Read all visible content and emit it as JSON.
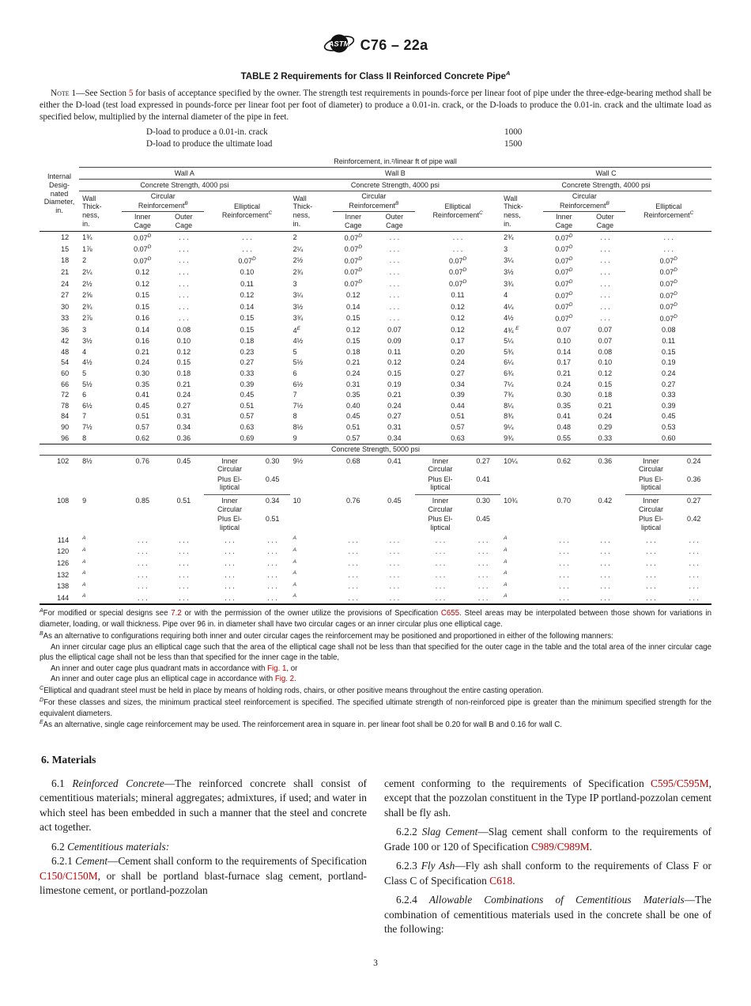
{
  "page": {
    "doc_code": "C76 – 22a",
    "page_number": "3"
  },
  "colors": {
    "link_red": "#c00000",
    "rule_dark": "#1c1c1c"
  },
  "table2": {
    "title": "TABLE 2 Requirements for Class II Reinforced Concrete Pipe",
    "title_sup": "A",
    "note": {
      "label": "Note 1—",
      "segs": [
        {
          "t": "See Section "
        },
        {
          "t": "5",
          "link": 1
        },
        {
          "t": " for basis of acceptance specified by the owner. The strength test requirements in pounds-force per linear foot of pipe under the three-edge-bearing method shall be either the D-load (test load expressed in pounds-force per linear foot per foot of diameter) to produce a 0.01-in. crack, or the D-loads to produce the 0.01-in. crack and the ultimate load as specified below, multiplied by the internal diameter of the pipe in feet."
        }
      ]
    },
    "dloads": [
      {
        "label": "D-load to produce a 0.01-in. crack",
        "value": "1000"
      },
      {
        "label": "D-load to produce the ultimate load",
        "value": "1500"
      }
    ],
    "header": {
      "caption": "Reinforcement, in.²/linear ft of pipe wall",
      "stub": "Internal\nDesig-\nnated\nDiameter,\nin.",
      "walls": [
        "Wall A",
        "Wall B",
        "Wall C"
      ],
      "strength_4000": "Concrete Strength, 4000 psi",
      "strength_5000": "Concrete Strength, 5000 psi",
      "thickness": "Wall\nThick-\nness,\nin.",
      "circular": "Circular\nReinforcement",
      "circular_sup": "B",
      "inner": "Inner\nCage",
      "outer": "Outer\nCage",
      "elliptical": "Elliptical\nReinforcement",
      "elliptical_sup": "C"
    },
    "dots": ". . .",
    "ell_label1": "Inner\nCircular",
    "ell_label2": "Plus El-\nliptical",
    "rows_4000": [
      {
        "d": "12",
        "a": [
          "1¾",
          "0.07^D",
          ". . .",
          ". . ."
        ],
        "b": [
          "2",
          "0.07^D",
          ". . .",
          ". . ."
        ],
        "c": [
          "2¾",
          "0.07^D",
          ". . .",
          ". . ."
        ]
      },
      {
        "d": "15",
        "a": [
          "1⅞",
          "0.07^D",
          ". . .",
          ". . ."
        ],
        "b": [
          "2¼",
          "0.07^D",
          ". . .",
          ". . ."
        ],
        "c": [
          "3",
          "0.07^D",
          ". . .",
          ". . ."
        ]
      },
      {
        "d": "18",
        "a": [
          "2",
          "0.07^D",
          ". . .",
          "0.07^D"
        ],
        "b": [
          "2½",
          "0.07^D",
          ". . .",
          "0.07^D"
        ],
        "c": [
          "3¼",
          "0.07^D",
          ". . .",
          "0.07^D"
        ]
      },
      {
        "d": "21",
        "a": [
          "2¼",
          "0.12",
          ". . .",
          "0.10"
        ],
        "b": [
          "2¾",
          "0.07^D",
          ". . .",
          "0.07^D"
        ],
        "c": [
          "3½",
          "0.07^D",
          ". . .",
          "0.07^D"
        ]
      },
      {
        "d": "24",
        "a": [
          "2½",
          "0.12",
          ". . .",
          "0.11"
        ],
        "b": [
          "3",
          "0.07^D",
          ". . .",
          "0.07^D"
        ],
        "c": [
          "3¾",
          "0.07^D",
          ". . .",
          "0.07^D"
        ]
      },
      {
        "d": "27",
        "a": [
          "2⅝",
          "0.15",
          ". . .",
          "0.12"
        ],
        "b": [
          "3¼",
          "0.12",
          ". . .",
          "0.11"
        ],
        "c": [
          "4",
          "0.07^D",
          ". . .",
          "0.07^D"
        ]
      },
      {
        "d": "30",
        "a": [
          "2¾",
          "0.15",
          ". . .",
          "0.14"
        ],
        "b": [
          "3½",
          "0.14",
          ". . .",
          "0.12"
        ],
        "c": [
          "4¼",
          "0.07^D",
          ". . .",
          "0.07^D"
        ]
      },
      {
        "d": "33",
        "a": [
          "2⅞",
          "0.16",
          ". . .",
          "0.15"
        ],
        "b": [
          "3¾",
          "0.15",
          ". . .",
          "0.12"
        ],
        "c": [
          "4½",
          "0.07^D",
          ". . .",
          "0.07^D"
        ]
      },
      {
        "d": "36",
        "a": [
          "3",
          "0.14",
          "0.08",
          "0.15"
        ],
        "b": [
          "4^E",
          "0.12",
          "0.07",
          "0.12"
        ],
        "c": [
          "4¾ ^E",
          "0.07",
          "0.07",
          "0.08"
        ]
      },
      {
        "d": "42",
        "a": [
          "3½",
          "0.16",
          "0.10",
          "0.18"
        ],
        "b": [
          "4½",
          "0.15",
          "0.09",
          "0.17"
        ],
        "c": [
          "5¼",
          "0.10",
          "0.07",
          "0.11"
        ]
      },
      {
        "d": "48",
        "a": [
          "4",
          "0.21",
          "0.12",
          "0.23"
        ],
        "b": [
          "5",
          "0.18",
          "0.11",
          "0.20"
        ],
        "c": [
          "5¾",
          "0.14",
          "0.08",
          "0.15"
        ]
      },
      {
        "d": "54",
        "a": [
          "4½",
          "0.24",
          "0.15",
          "0.27"
        ],
        "b": [
          "5½",
          "0.21",
          "0.12",
          "0.24"
        ],
        "c": [
          "6¼",
          "0.17",
          "0.10",
          "0.19"
        ]
      },
      {
        "d": "60",
        "a": [
          "5",
          "0.30",
          "0.18",
          "0.33"
        ],
        "b": [
          "6",
          "0.24",
          "0.15",
          "0.27"
        ],
        "c": [
          "6¾",
          "0.21",
          "0.12",
          "0.24"
        ]
      },
      {
        "d": "66",
        "a": [
          "5½",
          "0.35",
          "0.21",
          "0.39"
        ],
        "b": [
          "6½",
          "0.31",
          "0.19",
          "0.34"
        ],
        "c": [
          "7¼",
          "0.24",
          "0.15",
          "0.27"
        ]
      },
      {
        "d": "72",
        "a": [
          "6",
          "0.41",
          "0.24",
          "0.45"
        ],
        "b": [
          "7",
          "0.35",
          "0.21",
          "0.39"
        ],
        "c": [
          "7¾",
          "0.30",
          "0.18",
          "0.33"
        ]
      },
      {
        "d": "78",
        "a": [
          "6½",
          "0.45",
          "0.27",
          "0.51"
        ],
        "b": [
          "7½",
          "0.40",
          "0.24",
          "0.44"
        ],
        "c": [
          "8¼",
          "0.35",
          "0.21",
          "0.39"
        ]
      },
      {
        "d": "84",
        "a": [
          "7",
          "0.51",
          "0.31",
          "0.57"
        ],
        "b": [
          "8",
          "0.45",
          "0.27",
          "0.51"
        ],
        "c": [
          "8¾",
          "0.41",
          "0.24",
          "0.45"
        ]
      },
      {
        "d": "90",
        "a": [
          "7½",
          "0.57",
          "0.34",
          "0.63"
        ],
        "b": [
          "8½",
          "0.51",
          "0.31",
          "0.57"
        ],
        "c": [
          "9¼",
          "0.48",
          "0.29",
          "0.53"
        ]
      },
      {
        "d": "96",
        "a": [
          "8",
          "0.62",
          "0.36",
          "0.69"
        ],
        "b": [
          "9",
          "0.57",
          "0.34",
          "0.63"
        ],
        "c": [
          "9¾",
          "0.55",
          "0.33",
          "0.60"
        ]
      }
    ],
    "rows_5000": [
      {
        "d": "102",
        "a": [
          "8½",
          "0.76",
          "0.45",
          {
            "v1": "0.30",
            "v2": "0.45"
          }
        ],
        "b": [
          "9½",
          "0.68",
          "0.41",
          {
            "v1": "0.27",
            "v2": "0.41"
          }
        ],
        "c": [
          "10¼",
          "0.62",
          "0.36",
          {
            "v1": "0.24",
            "v2": "0.36"
          }
        ]
      },
      {
        "d": "108",
        "a": [
          "9",
          "0.85",
          "0.51",
          {
            "v1": "0.34",
            "v2": "0.51"
          }
        ],
        "b": [
          "10",
          "0.76",
          "0.45",
          {
            "v1": "0.30",
            "v2": "0.45"
          }
        ],
        "c": [
          "10¾",
          "0.70",
          "0.42",
          {
            "v1": "0.27",
            "v2": "0.42"
          }
        ]
      }
    ],
    "rows_empty": [
      {
        "d": "114",
        "sup": "A"
      },
      {
        "d": "120",
        "sup": "A"
      },
      {
        "d": "126",
        "sup": "A"
      },
      {
        "d": "132",
        "sup": "A"
      },
      {
        "d": "138",
        "sup": "A"
      },
      {
        "d": "144",
        "sup": "A"
      }
    ],
    "footnotes": [
      {
        "sup": "A",
        "parts": [
          {
            "segs": [
              {
                "t": "For modified or special designs see "
              },
              {
                "t": "7.2",
                "link": 1
              },
              {
                "t": " or with the permission of the owner utilize the provisions of Specification "
              },
              {
                "t": "C655",
                "link": 1
              },
              {
                "t": ". Steel areas may be interpolated between those shown for variations in diameter, loading, or wall thickness. Pipe over 96 in. in diameter shall have two circular cages or an inner circular plus one elliptical cage."
              }
            ]
          }
        ]
      },
      {
        "sup": "B",
        "parts": [
          {
            "segs": [
              {
                "t": "As an alternative to configurations requiring both inner and outer circular cages the reinforcement may be positioned and proportioned in either of the following manners:"
              }
            ]
          },
          {
            "indent": 1,
            "segs": [
              {
                "t": "An inner circular cage plus an elliptical cage such that the area of the elliptical cage shall not be less than that specified for the outer cage in the table and the total area of the inner circular cage plus the elliptical cage shall not be less than that specified for the inner cage in the table,"
              }
            ]
          },
          {
            "indent": 1,
            "segs": [
              {
                "t": "An inner and outer cage plus quadrant mats in accordance with "
              },
              {
                "t": "Fig. 1",
                "link": 1
              },
              {
                "t": ", or"
              }
            ]
          },
          {
            "indent": 1,
            "segs": [
              {
                "t": "An inner and outer cage plus an elliptical cage in accordance with "
              },
              {
                "t": "Fig. 2",
                "link": 1
              },
              {
                "t": "."
              }
            ]
          }
        ]
      },
      {
        "sup": "C",
        "parts": [
          {
            "segs": [
              {
                "t": "Elliptical and quadrant steel must be held in place by means of holding rods, chairs, or other positive means throughout the entire casting operation."
              }
            ]
          }
        ]
      },
      {
        "sup": "D",
        "parts": [
          {
            "segs": [
              {
                "t": "For these classes and sizes, the minimum practical steel reinforcement is specified. The specified ultimate strength of non-reinforced pipe is greater than the minimum specified strength for the equivalent diameters."
              }
            ]
          }
        ]
      },
      {
        "sup": "E",
        "parts": [
          {
            "segs": [
              {
                "t": "As an alternative, single cage reinforcement may be used. The reinforcement area in square in. per linear foot shall be 0.20 for wall B and 0.16 for wall C."
              }
            ]
          }
        ]
      }
    ]
  },
  "materials": {
    "heading": "6.  Materials",
    "left": [
      {
        "indent": 1,
        "segs": [
          {
            "t": "6.1 "
          },
          {
            "t": "Reinforced Concrete",
            "i": 1
          },
          {
            "t": "—The reinforced concrete shall consist of cementitious materials; mineral aggregates; admixtures, if used; and water in which steel has been embedded in such a manner that the steel and concrete act together."
          }
        ]
      },
      {
        "indent": 1,
        "gap": 1,
        "segs": [
          {
            "t": "6.2 "
          },
          {
            "t": "Cementitious materials:",
            "i": 1
          }
        ]
      },
      {
        "indent": 1,
        "segs": [
          {
            "t": "6.2.1 "
          },
          {
            "t": "Cement",
            "i": 1
          },
          {
            "t": "—Cement shall conform to the requirements of Specification "
          },
          {
            "t": "C150/C150M",
            "link": 1
          },
          {
            "t": ", or shall be portland blast-furnace slag cement, portland-limestone cement, or portland-pozzolan"
          }
        ]
      }
    ],
    "right": [
      {
        "segs": [
          {
            "t": "cement conforming to the requirements of Specification "
          },
          {
            "t": "C595/C595M",
            "link": 1
          },
          {
            "t": ", except that the pozzolan constituent in the Type IP portland-pozzolan cement shall be fly ash."
          }
        ]
      },
      {
        "indent": 1,
        "gap": 1,
        "segs": [
          {
            "t": "6.2.2 "
          },
          {
            "t": "Slag Cement",
            "i": 1
          },
          {
            "t": "—Slag cement shall conform to the requirements of Grade 100 or 120 of Specification "
          },
          {
            "t": "C989/C989M",
            "link": 1
          },
          {
            "t": "."
          }
        ]
      },
      {
        "indent": 1,
        "gap": 1,
        "segs": [
          {
            "t": "6.2.3 "
          },
          {
            "t": "Fly Ash",
            "i": 1
          },
          {
            "t": "—Fly ash shall conform to the requirements of Class F or Class C of Specification "
          },
          {
            "t": "C618",
            "link": 1
          },
          {
            "t": "."
          }
        ]
      },
      {
        "indent": 1,
        "gap": 1,
        "segs": [
          {
            "t": "6.2.4 "
          },
          {
            "t": "Allowable Combinations of Cementitious Materials",
            "i": 1
          },
          {
            "t": "—The combination of cementitious materials used in the concrete shall be one of the following:"
          }
        ]
      }
    ]
  }
}
